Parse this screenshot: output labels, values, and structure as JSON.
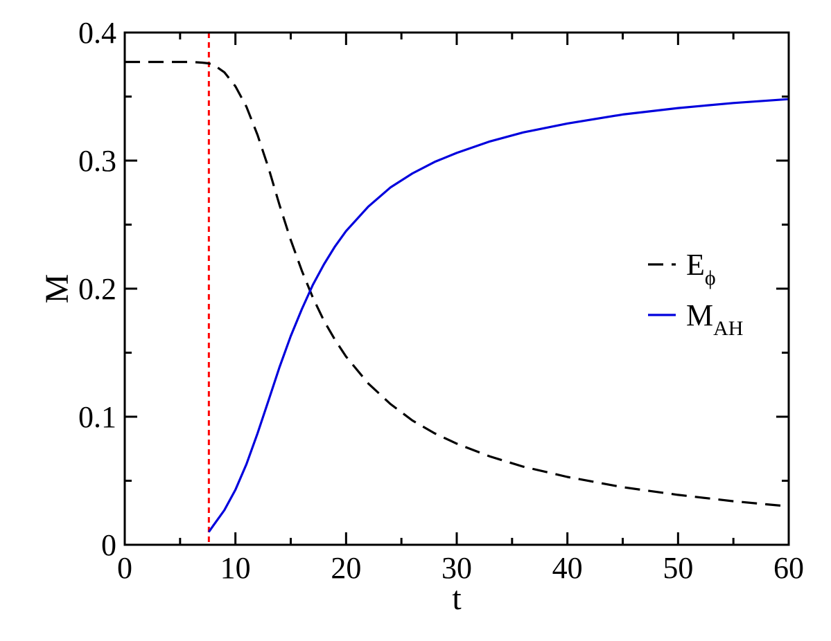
{
  "chart_data": {
    "type": "line",
    "title": "",
    "xlabel": "t",
    "ylabel": "M",
    "xlim": [
      0,
      60
    ],
    "ylim": [
      0,
      0.4
    ],
    "x_ticks": [
      0,
      10,
      20,
      30,
      40,
      50,
      60
    ],
    "y_ticks": [
      0,
      0.1,
      0.2,
      0.3,
      0.4
    ],
    "x_tick_labels": [
      "0",
      "10",
      "20",
      "30",
      "40",
      "50",
      "60"
    ],
    "y_tick_labels": [
      "0",
      "0.1",
      "0.2",
      "0.3",
      "0.4"
    ],
    "grid": false,
    "legend_position": "right-center",
    "series": [
      {
        "name": "E",
        "subscript": "ϕ",
        "color": "#000000",
        "style": "dashed",
        "x": [
          0,
          2,
          4,
          6,
          7,
          7.5,
          8,
          9,
          10,
          11,
          12,
          13,
          14,
          15,
          16,
          17,
          18,
          19,
          20,
          22,
          24,
          26,
          28,
          30,
          33,
          36,
          40,
          45,
          50,
          55,
          60
        ],
        "y": [
          0.377,
          0.377,
          0.377,
          0.377,
          0.3765,
          0.376,
          0.375,
          0.369,
          0.358,
          0.342,
          0.32,
          0.294,
          0.265,
          0.238,
          0.214,
          0.193,
          0.175,
          0.16,
          0.147,
          0.126,
          0.11,
          0.097,
          0.087,
          0.079,
          0.069,
          0.061,
          0.053,
          0.045,
          0.039,
          0.034,
          0.03
        ]
      },
      {
        "name": "M",
        "subscript": "AH",
        "color": "#0000dd",
        "style": "solid",
        "x": [
          7.6,
          8,
          9,
          10,
          11,
          12,
          13,
          14,
          15,
          16,
          17,
          18,
          19,
          20,
          22,
          24,
          26,
          28,
          30,
          33,
          36,
          40,
          45,
          50,
          55,
          60
        ],
        "y": [
          0.01,
          0.015,
          0.027,
          0.043,
          0.063,
          0.087,
          0.113,
          0.139,
          0.163,
          0.184,
          0.203,
          0.219,
          0.233,
          0.245,
          0.264,
          0.279,
          0.29,
          0.299,
          0.306,
          0.315,
          0.322,
          0.329,
          0.336,
          0.341,
          0.345,
          0.348
        ]
      }
    ],
    "reference_lines": [
      {
        "orientation": "vertical",
        "x": 7.6,
        "color": "#ff0000",
        "style": "dotted"
      }
    ]
  }
}
